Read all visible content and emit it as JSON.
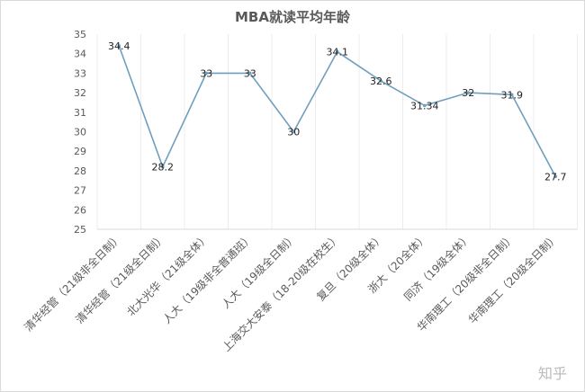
{
  "chart_data": {
    "type": "line",
    "title": "MBA就读平均年龄",
    "categories": [
      "清华经管（21级非全日制）",
      "清华经管（21级全日制）",
      "北大光华（21级全体）",
      "人大（19级非全普通班）",
      "人大（19级全日制）",
      "上海交大安泰（18-20级在校生）",
      "复旦（20级全体）",
      "浙大（20全体）",
      "同济（19级全体）",
      "华南理工（20级非全日制）",
      "华南理工（20级全日制）"
    ],
    "values": [
      34.4,
      28.2,
      33,
      33,
      30,
      34.1,
      32.6,
      31.34,
      32,
      31.9,
      27.7
    ],
    "data_labels": [
      "34.4",
      "28.2",
      "33",
      "33",
      "30",
      "34.1",
      "32.6",
      "31.34",
      "32",
      "31.9",
      "27.7"
    ],
    "ylim": [
      25,
      35
    ],
    "yticks": [
      25,
      26,
      27,
      28,
      29,
      30,
      31,
      32,
      33,
      34,
      35
    ],
    "grid": "vertical",
    "legend": "none",
    "colors": {
      "line": "#6f9fbf",
      "text": "#222222",
      "axis": "#595959"
    }
  },
  "watermark": "知乎"
}
